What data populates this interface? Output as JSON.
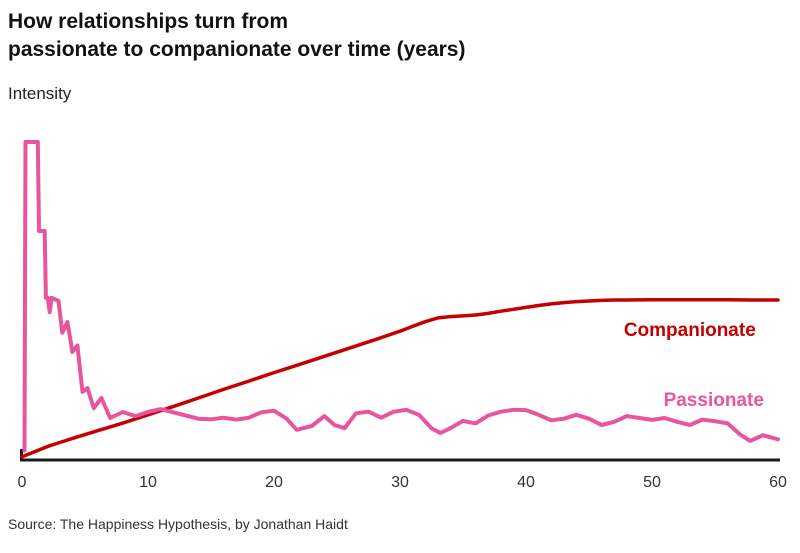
{
  "header": {
    "title_line1": "How relationships turn from",
    "title_line2": "passionate to companionate over time (years)",
    "ylabel": "Intensity"
  },
  "footer": {
    "source": "Source: The Happiness Hypothesis, by Jonathan Haidt"
  },
  "chart_data": {
    "type": "line",
    "title": "How relationships turn from passionate to companionate over time (years)",
    "xlabel": "",
    "ylabel": "Intensity",
    "xlim": [
      0,
      60
    ],
    "ylim": [
      0,
      1
    ],
    "xticks": [
      0,
      10,
      20,
      30,
      40,
      50,
      60
    ],
    "grid": false,
    "legend_position": "inline-right",
    "axis_color": "#1a1a1a",
    "tick_color": "#333333",
    "series": [
      {
        "name": "Companionate",
        "color": "#c40000",
        "stroke_width": 3.5,
        "label_pos": {
          "x": 53.0,
          "y": 0.406
        },
        "points": [
          [
            0,
            0.01
          ],
          [
            1,
            0.026
          ],
          [
            2,
            0.042
          ],
          [
            3,
            0.055
          ],
          [
            4,
            0.068
          ],
          [
            5,
            0.08
          ],
          [
            6,
            0.092
          ],
          [
            7,
            0.104
          ],
          [
            8,
            0.116
          ],
          [
            9,
            0.129
          ],
          [
            10,
            0.142
          ],
          [
            12,
            0.168
          ],
          [
            14,
            0.195
          ],
          [
            16,
            0.222
          ],
          [
            18,
            0.248
          ],
          [
            20,
            0.275
          ],
          [
            22,
            0.3
          ],
          [
            24,
            0.326
          ],
          [
            26,
            0.352
          ],
          [
            28,
            0.378
          ],
          [
            30,
            0.405
          ],
          [
            31,
            0.42
          ],
          [
            32,
            0.435
          ],
          [
            33,
            0.447
          ],
          [
            34,
            0.451
          ],
          [
            35,
            0.453
          ],
          [
            36,
            0.456
          ],
          [
            37,
            0.461
          ],
          [
            38,
            0.468
          ],
          [
            39,
            0.474
          ],
          [
            40,
            0.48
          ],
          [
            41,
            0.486
          ],
          [
            42,
            0.491
          ],
          [
            43,
            0.495
          ],
          [
            44,
            0.498
          ],
          [
            45,
            0.5
          ],
          [
            46,
            0.502
          ],
          [
            47,
            0.503
          ],
          [
            48,
            0.503
          ],
          [
            50,
            0.504
          ],
          [
            52,
            0.504
          ],
          [
            54,
            0.504
          ],
          [
            56,
            0.504
          ],
          [
            58,
            0.503
          ],
          [
            60,
            0.503
          ]
        ]
      },
      {
        "name": "Passionate",
        "color": "#e8549e",
        "stroke_width": 4,
        "label_pos": {
          "x": 54.9,
          "y": 0.186
        },
        "points": [
          [
            0.2,
            0.03
          ],
          [
            0.28,
            1.0
          ],
          [
            1.25,
            1.0
          ],
          [
            1.35,
            0.72
          ],
          [
            1.8,
            0.72
          ],
          [
            1.9,
            0.51
          ],
          [
            2.05,
            0.51
          ],
          [
            2.2,
            0.465
          ],
          [
            2.35,
            0.51
          ],
          [
            2.9,
            0.5
          ],
          [
            3.2,
            0.4
          ],
          [
            3.6,
            0.434
          ],
          [
            4.0,
            0.34
          ],
          [
            4.4,
            0.36
          ],
          [
            4.8,
            0.214
          ],
          [
            5.2,
            0.226
          ],
          [
            5.7,
            0.163
          ],
          [
            6.3,
            0.195
          ],
          [
            7,
            0.132
          ],
          [
            8,
            0.151
          ],
          [
            9,
            0.138
          ],
          [
            10,
            0.151
          ],
          [
            11,
            0.16
          ],
          [
            12,
            0.15
          ],
          [
            13,
            0.14
          ],
          [
            14,
            0.13
          ],
          [
            15,
            0.128
          ],
          [
            16,
            0.133
          ],
          [
            17,
            0.127
          ],
          [
            18,
            0.133
          ],
          [
            19,
            0.15
          ],
          [
            20,
            0.155
          ],
          [
            21,
            0.13
          ],
          [
            21.8,
            0.095
          ],
          [
            23,
            0.107
          ],
          [
            24,
            0.138
          ],
          [
            24.8,
            0.11
          ],
          [
            25.6,
            0.1
          ],
          [
            26.5,
            0.147
          ],
          [
            27.5,
            0.152
          ],
          [
            28.5,
            0.133
          ],
          [
            29.5,
            0.152
          ],
          [
            30.5,
            0.158
          ],
          [
            31.5,
            0.142
          ],
          [
            32.5,
            0.1
          ],
          [
            33.2,
            0.085
          ],
          [
            34,
            0.1
          ],
          [
            35,
            0.123
          ],
          [
            36,
            0.115
          ],
          [
            37,
            0.14
          ],
          [
            38,
            0.152
          ],
          [
            39,
            0.158
          ],
          [
            40,
            0.157
          ],
          [
            41,
            0.142
          ],
          [
            42,
            0.125
          ],
          [
            43,
            0.13
          ],
          [
            44,
            0.142
          ],
          [
            45,
            0.13
          ],
          [
            46,
            0.11
          ],
          [
            47,
            0.12
          ],
          [
            48,
            0.138
          ],
          [
            49,
            0.132
          ],
          [
            50,
            0.126
          ],
          [
            51,
            0.132
          ],
          [
            52,
            0.12
          ],
          [
            53,
            0.11
          ],
          [
            54,
            0.127
          ],
          [
            55,
            0.122
          ],
          [
            56,
            0.115
          ],
          [
            57,
            0.08
          ],
          [
            57.8,
            0.06
          ],
          [
            58.8,
            0.078
          ],
          [
            60,
            0.065
          ]
        ]
      }
    ]
  }
}
